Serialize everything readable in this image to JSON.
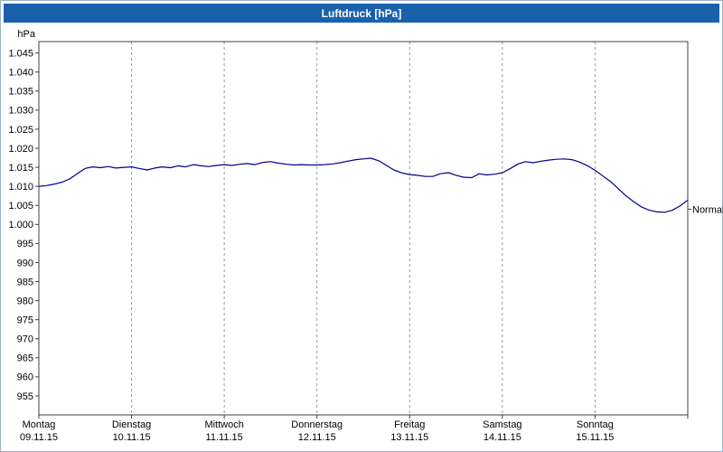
{
  "window": {
    "title": "Luftdruck [hPa]"
  },
  "colors": {
    "titlebar": "#1a61ac",
    "titlebar_text": "#ffffff",
    "plot_background": "#ffffff",
    "frame": "#404040",
    "grid": "#9a9a9a",
    "line": "#00008b",
    "text": "#000000"
  },
  "chart_data": {
    "type": "line",
    "title": "Luftdruck [hPa]",
    "ylabel": "hPa",
    "unit_label": "hPa",
    "ylim": [
      950,
      1048
    ],
    "x_range_days": [
      0,
      7
    ],
    "grid": {
      "vertical": "dashed",
      "horizontal": "none"
    },
    "legend_position": "none",
    "y_ticks": [
      {
        "value": 1045,
        "label": "1.045"
      },
      {
        "value": 1040,
        "label": "1.040"
      },
      {
        "value": 1035,
        "label": "1.035"
      },
      {
        "value": 1030,
        "label": "1.030"
      },
      {
        "value": 1025,
        "label": "1.025"
      },
      {
        "value": 1020,
        "label": "1.020"
      },
      {
        "value": 1015,
        "label": "1.015"
      },
      {
        "value": 1010,
        "label": "1.010"
      },
      {
        "value": 1005,
        "label": "1.005"
      },
      {
        "value": 1000,
        "label": "1.000"
      },
      {
        "value": 995,
        "label": "995"
      },
      {
        "value": 990,
        "label": "990"
      },
      {
        "value": 985,
        "label": "985"
      },
      {
        "value": 980,
        "label": "980"
      },
      {
        "value": 975,
        "label": "975"
      },
      {
        "value": 970,
        "label": "970"
      },
      {
        "value": 965,
        "label": "965"
      },
      {
        "value": 960,
        "label": "960"
      },
      {
        "value": 955,
        "label": "955"
      }
    ],
    "x_days": [
      {
        "name": "Montag",
        "date": "09.11.15"
      },
      {
        "name": "Dienstag",
        "date": "10.11.15"
      },
      {
        "name": "Mittwoch",
        "date": "11.11.15"
      },
      {
        "name": "Donnerstag",
        "date": "12.11.15"
      },
      {
        "name": "Freitag",
        "date": "13.11.15"
      },
      {
        "name": "Samstag",
        "date": "14.11.15"
      },
      {
        "name": "Sonntag",
        "date": "15.11.15"
      }
    ],
    "series": [
      {
        "name": "Luftdruck",
        "color": "#00008b",
        "points": [
          [
            0.0,
            1010.0
          ],
          [
            0.08,
            1010.2
          ],
          [
            0.17,
            1010.6
          ],
          [
            0.25,
            1011.1
          ],
          [
            0.33,
            1011.9
          ],
          [
            0.42,
            1013.4
          ],
          [
            0.5,
            1014.7
          ],
          [
            0.58,
            1015.1
          ],
          [
            0.67,
            1014.9
          ],
          [
            0.75,
            1015.2
          ],
          [
            0.83,
            1014.8
          ],
          [
            0.92,
            1015.0
          ],
          [
            1.0,
            1015.1
          ],
          [
            1.08,
            1014.7
          ],
          [
            1.17,
            1014.3
          ],
          [
            1.25,
            1014.8
          ],
          [
            1.33,
            1015.1
          ],
          [
            1.42,
            1014.9
          ],
          [
            1.5,
            1015.4
          ],
          [
            1.58,
            1015.1
          ],
          [
            1.67,
            1015.7
          ],
          [
            1.75,
            1015.4
          ],
          [
            1.83,
            1015.2
          ],
          [
            1.92,
            1015.5
          ],
          [
            2.0,
            1015.7
          ],
          [
            2.08,
            1015.5
          ],
          [
            2.17,
            1015.8
          ],
          [
            2.25,
            1016.0
          ],
          [
            2.33,
            1015.7
          ],
          [
            2.42,
            1016.3
          ],
          [
            2.5,
            1016.5
          ],
          [
            2.58,
            1016.1
          ],
          [
            2.67,
            1015.8
          ],
          [
            2.75,
            1015.6
          ],
          [
            2.83,
            1015.7
          ],
          [
            2.92,
            1015.6
          ],
          [
            3.0,
            1015.6
          ],
          [
            3.08,
            1015.7
          ],
          [
            3.17,
            1015.9
          ],
          [
            3.25,
            1016.2
          ],
          [
            3.33,
            1016.6
          ],
          [
            3.42,
            1017.0
          ],
          [
            3.5,
            1017.2
          ],
          [
            3.58,
            1017.4
          ],
          [
            3.67,
            1016.7
          ],
          [
            3.75,
            1015.5
          ],
          [
            3.83,
            1014.3
          ],
          [
            3.92,
            1013.5
          ],
          [
            4.0,
            1013.1
          ],
          [
            4.08,
            1012.9
          ],
          [
            4.17,
            1012.6
          ],
          [
            4.25,
            1012.6
          ],
          [
            4.33,
            1013.3
          ],
          [
            4.42,
            1013.6
          ],
          [
            4.5,
            1012.9
          ],
          [
            4.58,
            1012.4
          ],
          [
            4.67,
            1012.3
          ],
          [
            4.75,
            1013.3
          ],
          [
            4.83,
            1013.0
          ],
          [
            4.92,
            1013.2
          ],
          [
            5.0,
            1013.6
          ],
          [
            5.08,
            1014.6
          ],
          [
            5.17,
            1015.9
          ],
          [
            5.25,
            1016.5
          ],
          [
            5.33,
            1016.2
          ],
          [
            5.42,
            1016.6
          ],
          [
            5.5,
            1016.9
          ],
          [
            5.58,
            1017.1
          ],
          [
            5.67,
            1017.2
          ],
          [
            5.75,
            1017.0
          ],
          [
            5.83,
            1016.4
          ],
          [
            5.92,
            1015.4
          ],
          [
            6.0,
            1014.2
          ],
          [
            6.08,
            1012.8
          ],
          [
            6.17,
            1011.2
          ],
          [
            6.25,
            1009.4
          ],
          [
            6.33,
            1007.6
          ],
          [
            6.42,
            1005.9
          ],
          [
            6.5,
            1004.6
          ],
          [
            6.58,
            1003.8
          ],
          [
            6.67,
            1003.3
          ],
          [
            6.75,
            1003.2
          ],
          [
            6.83,
            1003.7
          ],
          [
            6.92,
            1004.9
          ],
          [
            7.0,
            1006.4
          ]
        ]
      }
    ],
    "annotations": [
      {
        "label": "Normal",
        "value": 1004,
        "position": "right"
      }
    ]
  }
}
